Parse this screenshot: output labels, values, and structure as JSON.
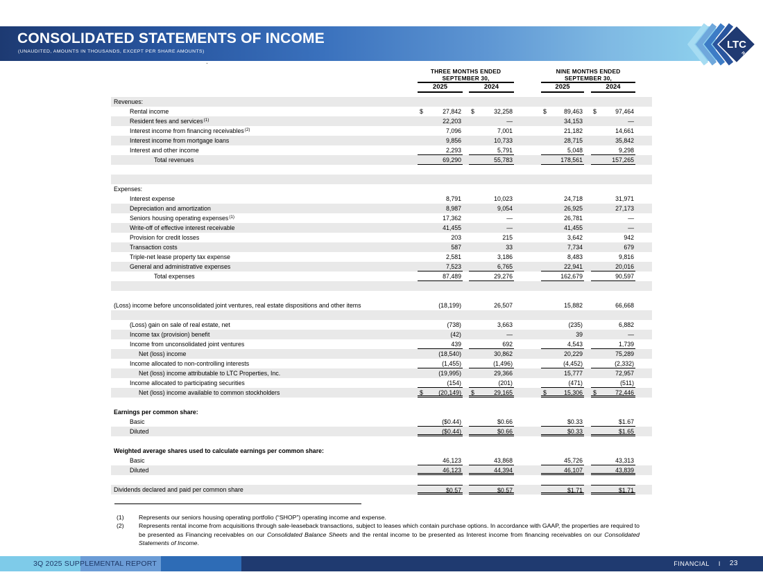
{
  "header": {
    "title": "CONSOLIDATED STATEMENTS OF INCOME",
    "subtitle": "(UNAUDITED, AMOUNTS IN THOUSANDS, EXCEPT PER SHARE AMOUNTS)",
    "logo": {
      "text": "LTC",
      "sub": "REIT"
    }
  },
  "misc": {
    "dot": "."
  },
  "colors": {
    "banner_gradient": [
      "#1d3a72",
      "#27549e",
      "#3a71bd",
      "#5e96d3",
      "#8fd2ee"
    ],
    "row_shade": "#e9e9e9",
    "footer_segments": [
      "#7ecbe9",
      "#6b9cd6",
      "#2e6cb6",
      "#1f3a70"
    ],
    "footer_text_dark": "#1d3766",
    "footer_text_light": "#ffffff",
    "logo_navy": "#203a72",
    "logo_chevrons": [
      "#a6dcf2",
      "#6fa8dc",
      "#3d7cc6",
      "#2a559e"
    ]
  },
  "table": {
    "currency_symbol": "$",
    "col_groups": [
      {
        "line1": "THREE MONTHS ENDED",
        "line2": "SEPTEMBER 30,",
        "years": [
          "2025",
          "2024"
        ]
      },
      {
        "line1": "NINE MONTHS ENDED",
        "line2": "SEPTEMBER 30,",
        "years": [
          "2025",
          "2024"
        ]
      }
    ],
    "rows": [
      {
        "label": "Revenues:",
        "indent": 0,
        "shaded": true
      },
      {
        "label": "Rental income",
        "indent": 1,
        "dollar": true,
        "values": [
          "27,842",
          "32,258",
          "89,463",
          "97,464"
        ]
      },
      {
        "label": "Resident fees and services",
        "sup": "(1)",
        "indent": 1,
        "shaded": true,
        "values": [
          "22,203",
          "—",
          "34,153",
          "—"
        ]
      },
      {
        "label": "Interest income from financing receivables",
        "sup": "(2)",
        "indent": 1,
        "values": [
          "7,096",
          "7,001",
          "21,182",
          "14,661"
        ]
      },
      {
        "label": "Interest income from mortgage loans",
        "indent": 1,
        "shaded": true,
        "values": [
          "9,856",
          "10,733",
          "28,715",
          "35,842"
        ]
      },
      {
        "label": "Interest and other income",
        "indent": 1,
        "values": [
          "2,293",
          "5,791",
          "5,048",
          "9,298"
        ],
        "rule": "bottom"
      },
      {
        "label": "Total revenues",
        "indent": 3,
        "shaded": true,
        "values": [
          "69,290",
          "55,783",
          "178,561",
          "157,265"
        ],
        "rule": "bottom"
      },
      {
        "blank": true
      },
      {
        "blank": true,
        "shaded": true
      },
      {
        "label": "Expenses:",
        "indent": 0
      },
      {
        "label": "Interest expense",
        "indent": 1,
        "values": [
          "8,791",
          "10,023",
          "24,718",
          "31,971"
        ]
      },
      {
        "label": "Depreciation and amortization",
        "indent": 1,
        "shaded": true,
        "values": [
          "8,987",
          "9,054",
          "26,925",
          "27,173"
        ]
      },
      {
        "label": "Seniors housing operating expenses",
        "sup": "(1)",
        "indent": 1,
        "values": [
          "17,362",
          "—",
          "26,781",
          "—"
        ]
      },
      {
        "label": "Write-off of effective interest receivable",
        "indent": 1,
        "shaded": true,
        "values": [
          "41,455",
          "—",
          "41,455",
          "—"
        ]
      },
      {
        "label": "Provision for credit losses",
        "indent": 1,
        "values": [
          "203",
          "215",
          "3,642",
          "942"
        ]
      },
      {
        "label": "Transaction costs",
        "indent": 1,
        "shaded": true,
        "values": [
          "587",
          "33",
          "7,734",
          "679"
        ]
      },
      {
        "label": "Triple-net lease property tax expense",
        "indent": 1,
        "values": [
          "2,581",
          "3,186",
          "8,483",
          "9,816"
        ]
      },
      {
        "label": "General and administrative expenses",
        "indent": 1,
        "shaded": true,
        "values": [
          "7,523",
          "6,765",
          "22,941",
          "20,016"
        ],
        "rule": "bottom"
      },
      {
        "label": "Total expenses",
        "indent": 3,
        "values": [
          "87,489",
          "29,276",
          "162,679",
          "90,597"
        ],
        "rule": "bottom"
      },
      {
        "blank": true,
        "shaded": true
      },
      {
        "blank": true
      },
      {
        "label": "(Loss) income before unconsolidated joint ventures, real estate dispositions and other items",
        "indent": 0,
        "values": [
          "(18,199)",
          "26,507",
          "15,882",
          "66,668"
        ]
      },
      {
        "blank": true,
        "shaded": true
      },
      {
        "label": "(Loss) gain on sale of real estate, net",
        "indent": 1,
        "values": [
          "(738)",
          "3,663",
          "(235)",
          "6,882"
        ]
      },
      {
        "label": "Income tax (provision) benefit",
        "indent": 1,
        "shaded": true,
        "values": [
          "(42)",
          "—",
          "39",
          "—"
        ]
      },
      {
        "label": "Income from unconsolidated joint ventures",
        "indent": 1,
        "values": [
          "439",
          "692",
          "4,543",
          "1,739"
        ],
        "rule": "bottom"
      },
      {
        "label": "Net (loss) income",
        "indent": 2,
        "shaded": true,
        "values": [
          "(18,540)",
          "30,862",
          "20,229",
          "75,289"
        ]
      },
      {
        "label": "Income allocated to non-controlling interests",
        "indent": 1,
        "values": [
          "(1,455)",
          "(1,496)",
          "(4,452)",
          "(2,332)"
        ],
        "rule": "bottom"
      },
      {
        "label": "Net (loss) income attributable to LTC Properties, Inc.",
        "indent": 2,
        "shaded": true,
        "values": [
          "(19,995)",
          "29,366",
          "15,777",
          "72,957"
        ]
      },
      {
        "label": "Income allocated to participating securities",
        "indent": 1,
        "values": [
          "(154)",
          "(201)",
          "(471)",
          "(511)"
        ],
        "rule": "bottom"
      },
      {
        "label": "Net (loss) income available to common stockholders",
        "indent": 2,
        "shaded": true,
        "dollar": true,
        "values": [
          "(20,149)",
          "29,165",
          "15,306",
          "72,446"
        ],
        "rule": "double"
      },
      {
        "blank": true
      },
      {
        "label": "Earnings per common share:",
        "indent": 0,
        "bold": true
      },
      {
        "label": "Basic",
        "indent": 1,
        "values": [
          "($0.44)",
          "$0.66",
          "$0.33",
          "$1.67"
        ],
        "rule": "bottom"
      },
      {
        "label": "Diluted",
        "indent": 1,
        "shaded": true,
        "values": [
          "($0.44)",
          "$0.66",
          "$0.33",
          "$1.65"
        ],
        "rule": "double"
      },
      {
        "blank": true
      },
      {
        "label": "Weighted average shares used to calculate earnings per common share:",
        "indent": 0,
        "bold": true
      },
      {
        "label": "Basic",
        "indent": 1,
        "values": [
          "46,123",
          "43,868",
          "45,726",
          "43,313"
        ],
        "rule": "bottom"
      },
      {
        "label": "Diluted",
        "indent": 1,
        "shaded": true,
        "values": [
          "46,123",
          "44,394",
          "46,107",
          "43,839"
        ],
        "rule": "double"
      },
      {
        "blank": true
      },
      {
        "label": "Dividends declared and paid per common share",
        "indent": 0,
        "shaded": true,
        "values": [
          "$0.57",
          "$0.57",
          "$1.71",
          "$1.71"
        ],
        "rule": "double",
        "top_rule": true
      }
    ]
  },
  "footnotes": [
    {
      "num": "(1)",
      "parts": [
        {
          "text": "Represents our seniors housing operating portfolio (“SHOP”) operating income and expense."
        }
      ]
    },
    {
      "num": "(2)",
      "parts": [
        {
          "text": "Represents rental income from acquisitions through sale-leaseback transactions, subject to leases which contain purchase options. In accordance with GAAP, the properties are required to be presented as Financing receivables on our "
        },
        {
          "text": "Consolidated Balance Sheets",
          "italic": true
        },
        {
          "text": " and the rental income to be presented as Interest income from financing receivables on our "
        },
        {
          "text": "Consolidated Statements of Income",
          "italic": true
        },
        {
          "text": "."
        }
      ]
    }
  ],
  "footer": {
    "left": "3Q 2025 SUPPLEMENTAL REPORT",
    "right_section": "FINANCIAL",
    "divider": "I",
    "page": "23"
  }
}
